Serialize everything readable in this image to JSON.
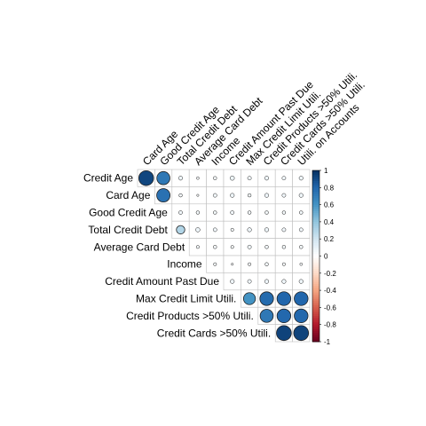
{
  "chart_data": {
    "type": "heatmap",
    "variables": [
      "Credit Age",
      "Card Age",
      "Good Credit Age",
      "Total Credit Debt",
      "Average Card Debt",
      "Income",
      "Credit Amount Past Due",
      "Max Credit Limit Utili.",
      "Credit Products >50% Utili.",
      "Credit Cards >50% Utili.",
      "Utili. on Accounts"
    ],
    "row_labels": [
      "Credit Age",
      "Card Age",
      "Good Credit Age",
      "Total Credit Debt",
      "Average Card Debt",
      "Income",
      "Credit Amount Past Due",
      "Max Credit Limit Utili.",
      "Credit Products >50% Utili.",
      "Credit Cards >50% Utili."
    ],
    "column_labels": [
      "Card Age",
      "Good Credit Age",
      "Total Credit Debt",
      "Average Card Debt",
      "Income",
      "Credit Amount Past Due",
      "Max Credit Limit Utili.",
      "Credit Products >50% Utili.",
      "Credit Cards >50% Utili.",
      "Utili. on Accounts"
    ],
    "matrix_shape": "upper-triangle",
    "values": [
      [
        0.92,
        0.72,
        0.07,
        0.03,
        0.05,
        0.08,
        0.06,
        0.07,
        0.06,
        0.07
      ],
      [
        null,
        0.75,
        0.05,
        0.02,
        0.06,
        0.07,
        0.05,
        0.07,
        0.06,
        0.07
      ],
      [
        null,
        null,
        0.06,
        0.05,
        0.05,
        0.06,
        0.05,
        0.05,
        0.05,
        0.05
      ],
      [
        null,
        null,
        0.3,
        0.08,
        0.06,
        0.04,
        0.07,
        0.07,
        0.06,
        0.06
      ],
      [
        null,
        null,
        null,
        0.04,
        0.05,
        0.04,
        0.06,
        0.05,
        0.05,
        0.05
      ],
      [
        null,
        null,
        null,
        null,
        0.04,
        0.02,
        0.04,
        0.05,
        0.04,
        0.03
      ],
      [
        null,
        null,
        null,
        null,
        null,
        0.07,
        0.06,
        0.07,
        0.07,
        0.07
      ],
      [
        null,
        null,
        null,
        null,
        null,
        null,
        0.6,
        0.78,
        0.8,
        0.8
      ],
      [
        null,
        null,
        null,
        null,
        null,
        null,
        null,
        0.72,
        0.79,
        0.79
      ],
      [
        null,
        null,
        null,
        null,
        null,
        null,
        null,
        null,
        0.93,
        0.93
      ]
    ],
    "colorbar": {
      "range": [
        -1,
        1
      ],
      "ticks": [
        "1",
        "0.8",
        "0.6",
        "0.4",
        "0.2",
        "0",
        "-0.2",
        "-0.4",
        "-0.6",
        "-0.8",
        "-1"
      ]
    },
    "grid": true,
    "legend": "right",
    "colors": {
      "negative": "#67001f",
      "neutral": "#ffffff",
      "positive": "#053061",
      "grid": "#bfbfbf"
    }
  }
}
